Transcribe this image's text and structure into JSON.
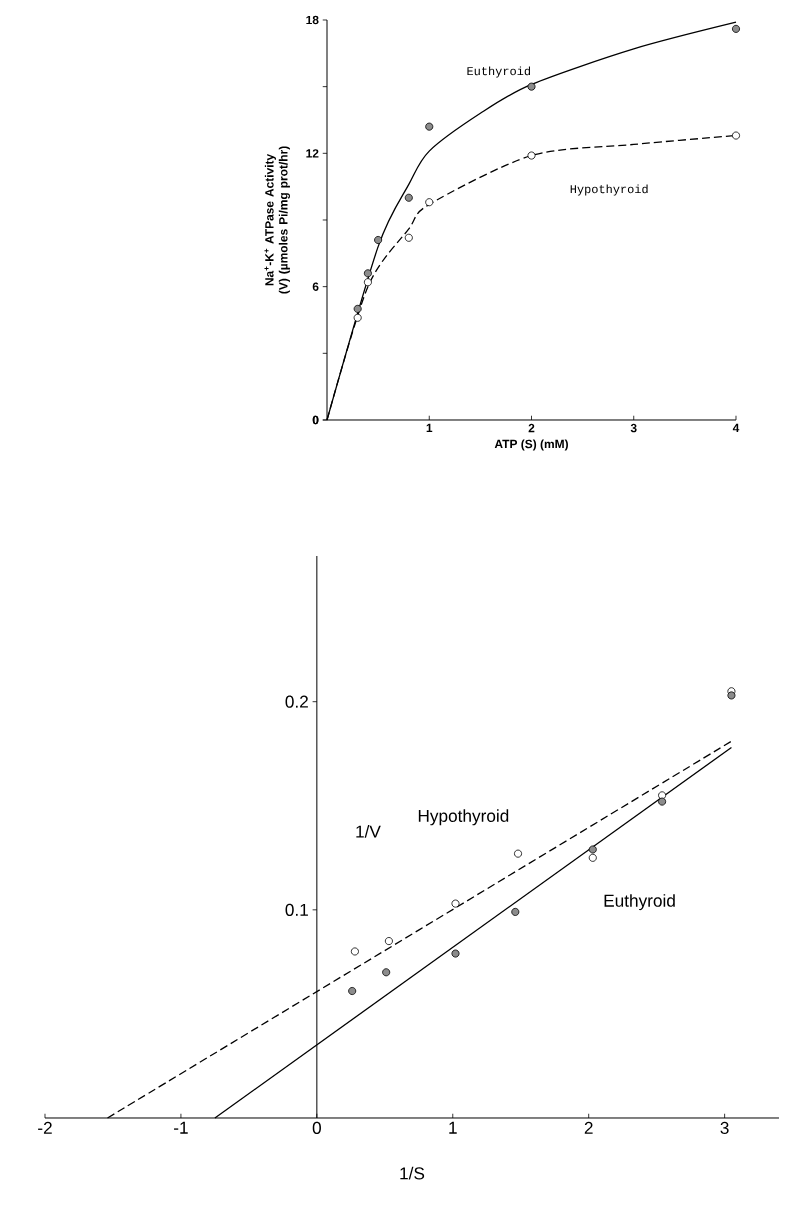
{
  "chart_data": [
    {
      "type": "scatter",
      "xlabel": "ATP (S) (mM)",
      "ylabel": "Na$^{+}$-K$^{+}$ ATPase Activity (V) (µmoles Pi/mg prot/hr)",
      "xlim": [
        0,
        4
      ],
      "ylim": [
        0,
        18
      ],
      "xticks": [
        1,
        2,
        3,
        4
      ],
      "yticks": [
        0,
        {
          "value": 3,
          "label": null
        },
        6,
        {
          "value": 9,
          "label": null
        },
        12,
        {
          "value": 15,
          "label": null
        },
        18
      ],
      "series": [
        {
          "type": "line",
          "name": "Euthyroid",
          "color": "#000000",
          "line_style": "solid",
          "marker": "none",
          "x": [
            0,
            0.5,
            0.8,
            1,
            1.5,
            2,
            3,
            4
          ],
          "values": [
            0,
            7.8,
            10.6,
            12.1,
            13.8,
            15.1,
            16.7,
            17.9
          ]
        },
        {
          "type": "line",
          "name": "Hypothyroid",
          "color": "#000000",
          "line_style": "dashed",
          "marker": "none",
          "x": [
            0,
            0.4,
            0.8,
            1,
            2,
            3,
            4
          ],
          "values": [
            0,
            6.0,
            8.6,
            9.7,
            11.9,
            12.4,
            12.8
          ]
        },
        {
          "color": "#8c8c8c",
          "marker": "circle",
          "x": [
            0.3,
            0.4,
            0.5,
            0.8,
            1,
            2,
            4
          ],
          "values": [
            5.0,
            6.6,
            8.1,
            10.0,
            13.2,
            15.0,
            17.6
          ]
        },
        {
          "color": "#ffffff",
          "marker": "circle",
          "x": [
            0.3,
            0.4,
            0.8,
            1,
            2,
            4
          ],
          "values": [
            4.6,
            6.2,
            8.2,
            9.8,
            11.9,
            12.8
          ]
        }
      ]
    },
    {
      "type": "scatter",
      "xlabel": "1/S",
      "ylabel": "1/V",
      "xlim": [
        -2,
        3.4
      ],
      "ylim": [
        0,
        0.27
      ],
      "xticks": [
        -2,
        -1,
        0,
        1,
        2,
        3
      ],
      "yticks": [
        0.1,
        0.2
      ],
      "series": [
        {
          "type": "line",
          "name": "Hypothyroid",
          "color": "#000000",
          "line_style": "dashed",
          "marker": "none",
          "x": [
            -1.54,
            3.05
          ],
          "values": [
            0,
            0.181
          ]
        },
        {
          "type": "line",
          "name": "Euthyroid",
          "color": "#000000",
          "line_style": "solid",
          "marker": "none",
          "x": [
            -0.75,
            3.05
          ],
          "values": [
            0,
            0.178
          ]
        },
        {
          "color": "#ffffff",
          "marker": "circle",
          "x": [
            0.28,
            0.53,
            1.02,
            1.48,
            2.03,
            2.54,
            3.05
          ],
          "values": [
            0.08,
            0.085,
            0.103,
            0.127,
            0.125,
            0.155,
            0.205
          ]
        },
        {
          "color": "#8c8c8c",
          "marker": "circle",
          "x": [
            0.26,
            0.51,
            1.02,
            1.46,
            2.03,
            2.54,
            3.05
          ],
          "values": [
            0.061,
            0.07,
            0.079,
            0.099,
            0.129,
            0.152,
            0.203
          ]
        }
      ]
    }
  ]
}
